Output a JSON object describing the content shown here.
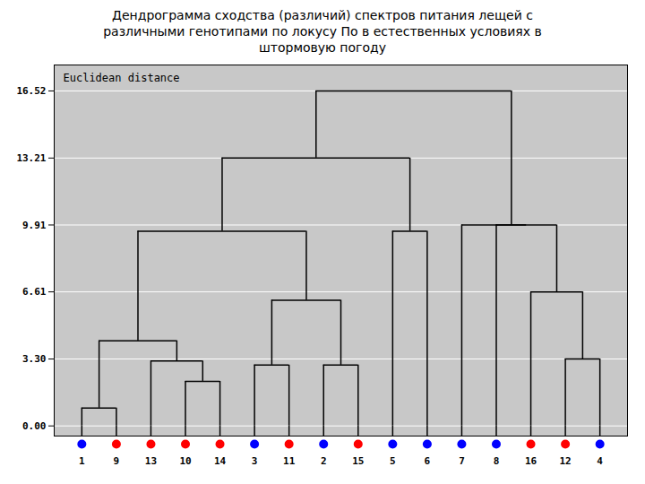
{
  "chart_data": {
    "type": "dendrogram",
    "title": "Дендрограмма сходства (различий) спектров питания лещей с\nразличными генотипами по локусу По в естественных условиях в\nштормовую погоду",
    "ylabel": "Euclidean distance",
    "categories": [
      "1",
      "9",
      "13",
      "10",
      "14",
      "3",
      "11",
      "2",
      "15",
      "5",
      "6",
      "7",
      "8",
      "16",
      "12",
      "4"
    ],
    "colors": [
      "blue",
      "red",
      "red",
      "red",
      "red",
      "blue",
      "red",
      "blue",
      "red",
      "blue",
      "blue",
      "blue",
      "blue",
      "red",
      "red",
      "blue"
    ],
    "segments": [
      {
        "x1": 0,
        "x2": 1,
        "height": 0.88,
        "base1": 0,
        "base2": 0
      },
      {
        "x1": 3,
        "x2": 4,
        "height": 2.2,
        "base1": 0,
        "base2": 0
      },
      {
        "x1": 2,
        "x2": 3.5,
        "height": 3.2,
        "base1": 0,
        "base2": 2.2
      },
      {
        "x1": 0.5,
        "x2": 2.75,
        "height": 4.2,
        "base1": 0.88,
        "base2": 3.2
      },
      {
        "x1": 5,
        "x2": 6,
        "height": 3.0,
        "base1": 0,
        "base2": 0
      },
      {
        "x1": 7,
        "x2": 8,
        "height": 3.0,
        "base1": 0,
        "base2": 0
      },
      {
        "x1": 5.5,
        "x2": 7.5,
        "height": 6.2,
        "base1": 3.0,
        "base2": 3.0
      },
      {
        "x1": 1.625,
        "x2": 6.5,
        "height": 9.6,
        "base1": 4.2,
        "base2": 6.2
      },
      {
        "x1": 9,
        "x2": 10,
        "height": 9.6,
        "base1": 0,
        "base2": 0
      },
      {
        "x1": 4.0625,
        "x2": 9.5,
        "height": 13.21,
        "base1": 9.6,
        "base2": 9.6
      },
      {
        "x1": 14,
        "x2": 15,
        "height": 3.3,
        "base1": 0,
        "base2": 0
      },
      {
        "x1": 13,
        "x2": 14.5,
        "height": 6.61,
        "base1": 0,
        "base2": 3.3
      },
      {
        "x1": 12,
        "x2": 13.75,
        "height": 9.91,
        "base1": 0,
        "base2": 6.61
      },
      {
        "x1": 11,
        "x2": 12.875,
        "height": 9.91,
        "base1": 0,
        "base2": 9.91
      },
      {
        "x1": 6.78125,
        "x2": 12.4375,
        "height": 16.52,
        "base1": 13.21,
        "base2": 9.91
      }
    ],
    "ylim": [
      -0.5,
      17.8
    ],
    "yticks": [
      {
        "value": 0.0,
        "label": "0.00"
      },
      {
        "value": 3.3,
        "label": "3.30"
      },
      {
        "value": 6.61,
        "label": "6.61"
      },
      {
        "value": 9.91,
        "label": "9.91"
      },
      {
        "value": 13.21,
        "label": "13.21"
      },
      {
        "value": 16.52,
        "label": "16.52"
      }
    ],
    "grid": true
  }
}
